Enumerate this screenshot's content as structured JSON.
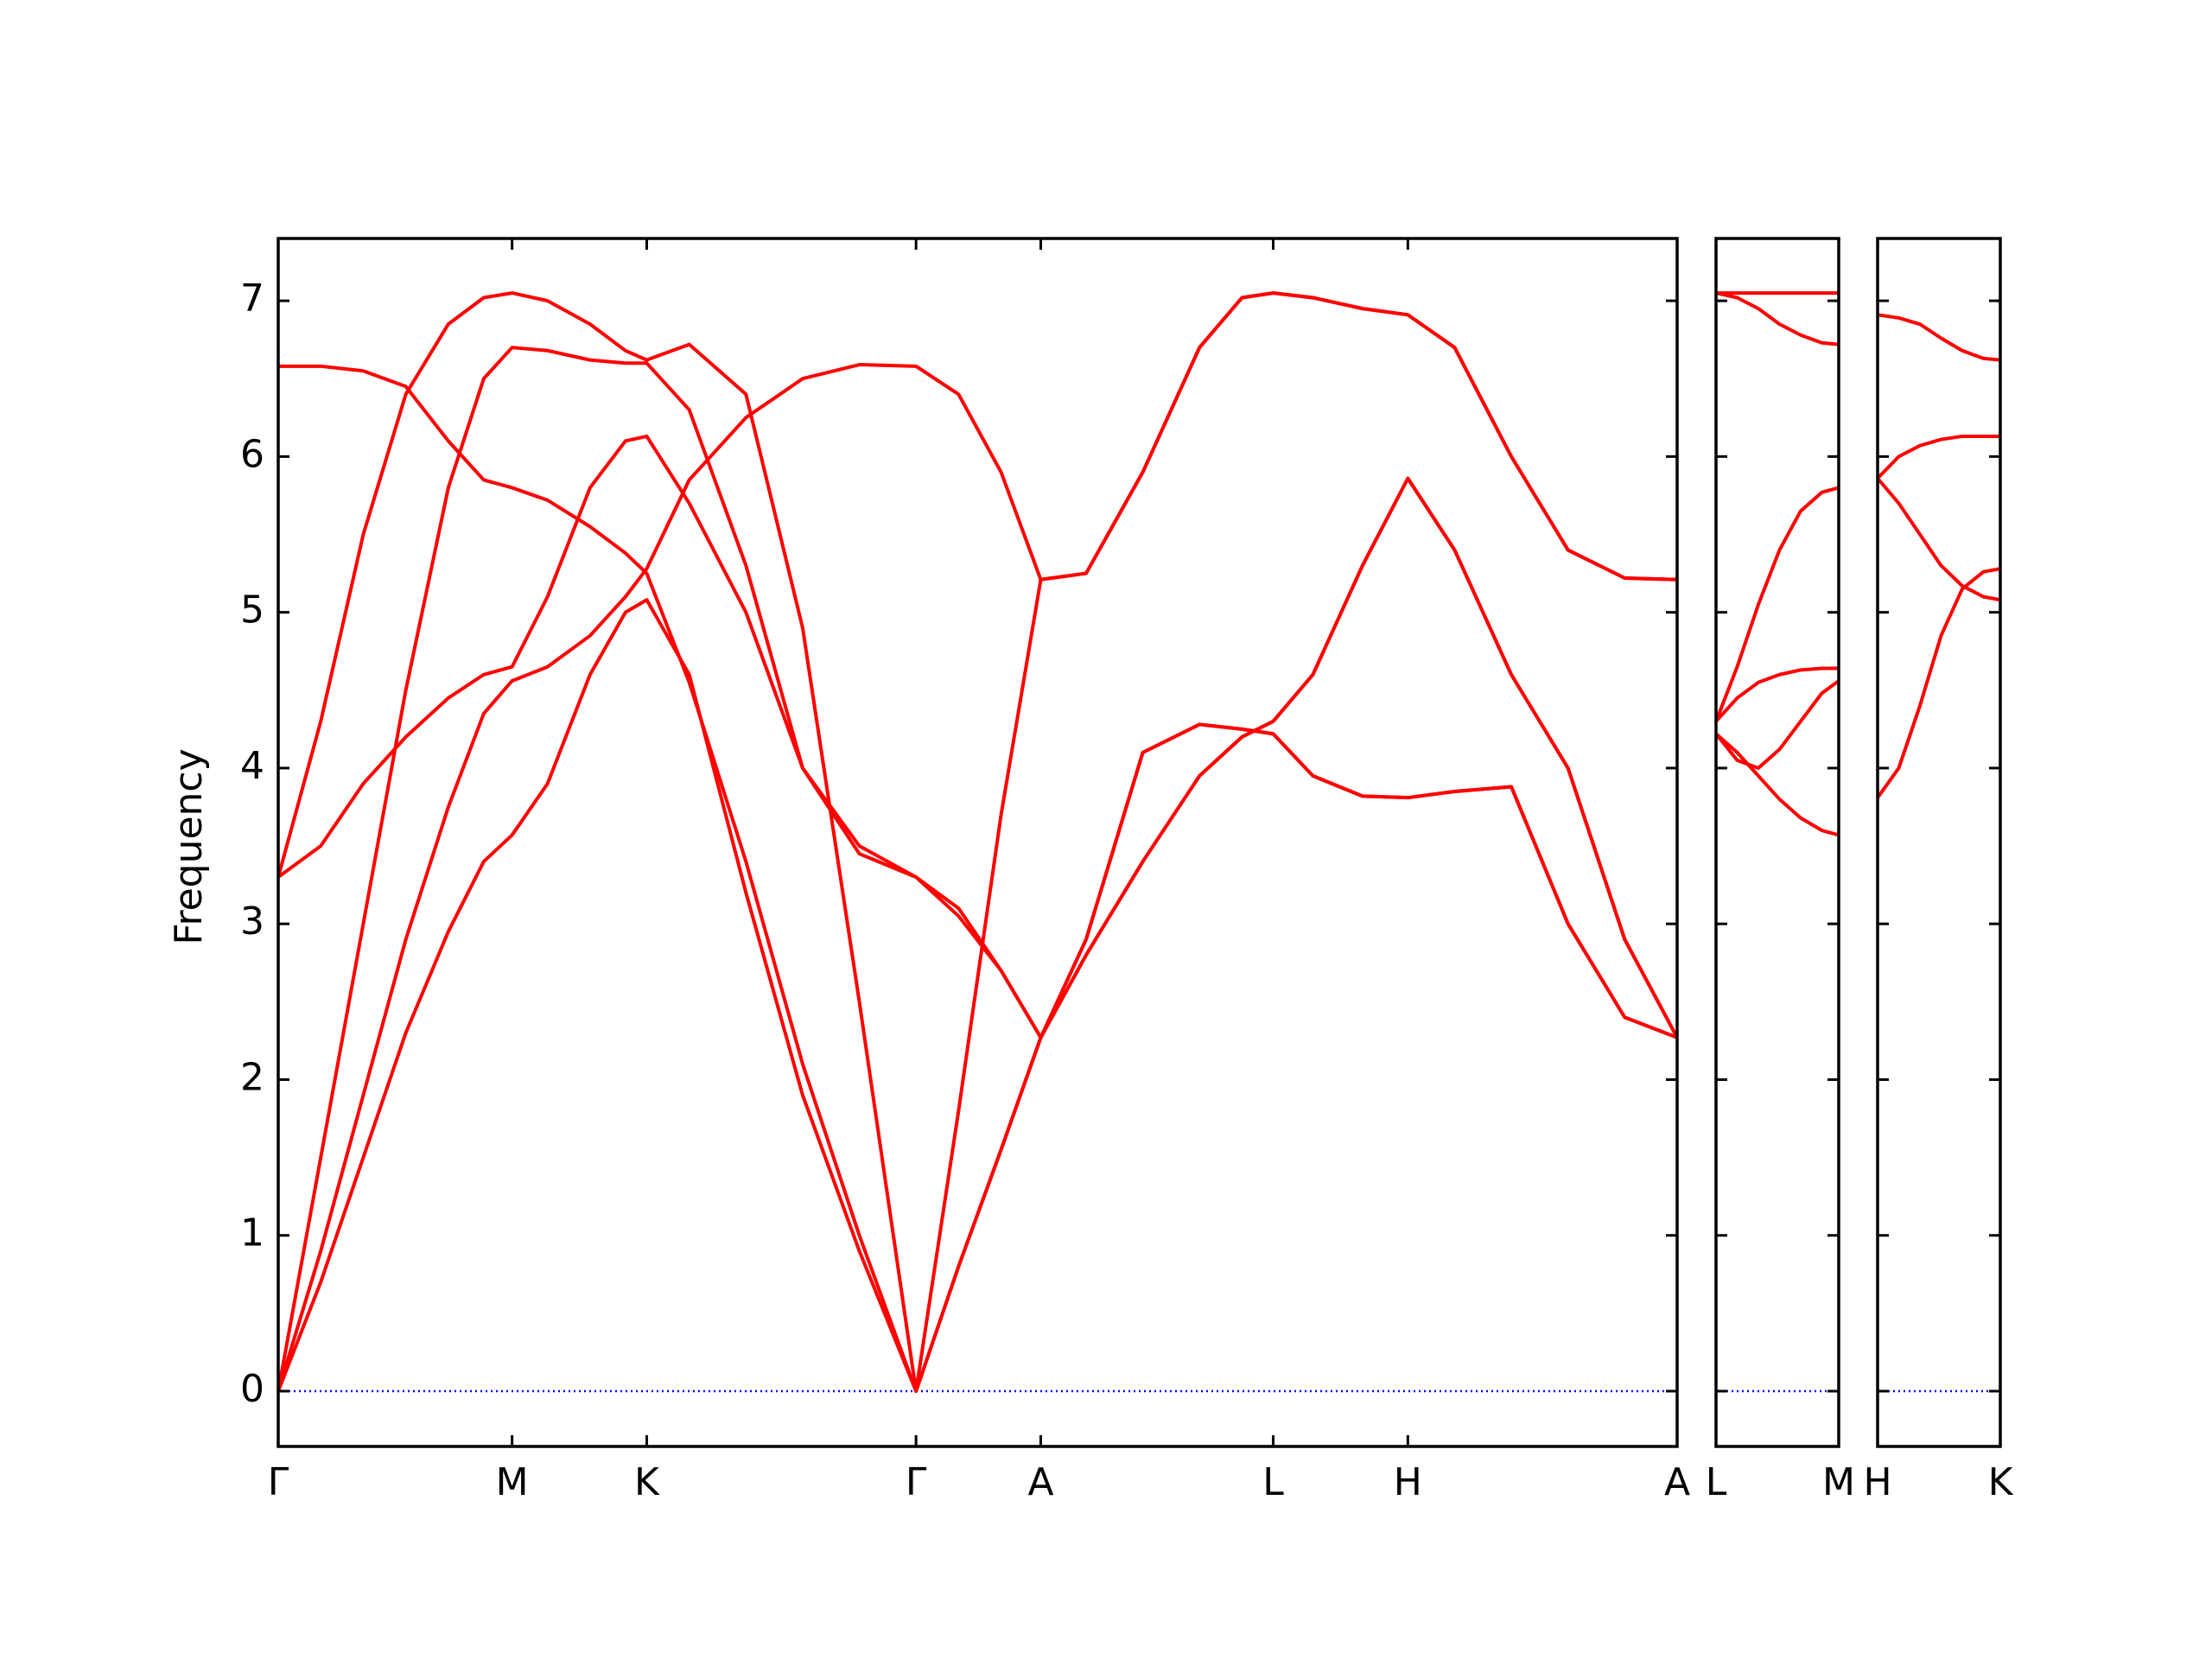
{
  "chart_data": [
    {
      "type": "line",
      "ylabel": "Frequency",
      "ytick_labels": true,
      "color": "#ff0000",
      "xlim": [
        0,
        9.87
      ],
      "ylim": [
        -0.355,
        7.4
      ],
      "xticks": [
        {
          "value": 0,
          "label": "Γ"
        },
        {
          "value": 1.65,
          "label": "M"
        },
        {
          "value": 2.6,
          "label": "K"
        },
        {
          "value": 4.5,
          "label": "Γ"
        },
        {
          "value": 5.38,
          "label": "A"
        },
        {
          "value": 7.02,
          "label": "L"
        },
        {
          "value": 7.97,
          "label": "H"
        },
        {
          "value": 9.87,
          "label": "A"
        }
      ],
      "yticks": [
        0,
        1,
        2,
        3,
        4,
        5,
        6,
        7
      ],
      "hline": {
        "value": 0,
        "color": "#0000ff"
      },
      "x": [
        0,
        0.3,
        0.6,
        0.9,
        1.2,
        1.45,
        1.65,
        1.9,
        2.2,
        2.45,
        2.6,
        2.9,
        3.3,
        3.7,
        4.1,
        4.5,
        4.8,
        5.1,
        5.38,
        5.7,
        6.1,
        6.5,
        6.8,
        7.02,
        7.3,
        7.65,
        7.97,
        8.3,
        8.7,
        9.1,
        9.5,
        9.87
      ],
      "series": [
        {
          "values": [
            0,
            0.7,
            1.5,
            2.3,
            2.95,
            3.4,
            3.57,
            3.9,
            4.6,
            5.0,
            5.08,
            4.6,
            3.2,
            1.9,
            0.9,
            0,
            0.8,
            1.55,
            2.27,
            2.9,
            4.1,
            4.28,
            4.25,
            4.22,
            3.95,
            3.82,
            3.81,
            3.85,
            3.88,
            3.0,
            2.4,
            2.27
          ]
        },
        {
          "values": [
            0,
            0.9,
            1.9,
            2.9,
            3.75,
            4.35,
            4.56,
            4.65,
            4.85,
            5.1,
            5.28,
            5.85,
            6.25,
            6.5,
            6.59,
            6.58,
            6.4,
            5.9,
            5.21,
            5.25,
            5.9,
            6.7,
            7.02,
            7.05,
            7.02,
            6.95,
            6.91,
            6.7,
            6.0,
            5.4,
            5.22,
            5.21
          ]
        },
        {
          "values": [
            0,
            1.5,
            3.0,
            4.5,
            5.8,
            6.5,
            6.7,
            6.68,
            6.62,
            6.6,
            6.6,
            6.3,
            5.3,
            4.0,
            3.45,
            3.3,
            3.05,
            2.7,
            2.27,
            2.8,
            3.4,
            3.95,
            4.2,
            4.3,
            4.6,
            5.3,
            5.86,
            5.4,
            4.6,
            4.0,
            2.9,
            2.27
          ]
        },
        {
          "values": [
            3.3,
            4.3,
            5.5,
            6.4,
            6.85,
            7.02,
            7.05,
            7.0,
            6.85,
            6.68,
            6.62,
            6.72,
            6.4,
            4.9,
            2.5,
            0,
            1.8,
            3.7,
            5.21,
            5.25,
            5.9,
            6.7,
            7.02,
            7.05,
            7.02,
            6.95,
            6.91,
            6.7,
            6.0,
            5.4,
            5.22,
            5.21
          ]
        },
        {
          "values": [
            3.3,
            3.5,
            3.9,
            4.2,
            4.45,
            4.6,
            4.65,
            5.1,
            5.8,
            6.1,
            6.13,
            5.7,
            5.0,
            4.0,
            3.5,
            3.3,
            3.1,
            2.7,
            2.27,
            2.9,
            4.1,
            4.28,
            4.25,
            4.22,
            3.95,
            3.82,
            3.81,
            3.85,
            3.88,
            3.0,
            2.4,
            2.27
          ]
        },
        {
          "values": [
            6.58,
            6.58,
            6.55,
            6.45,
            6.1,
            5.85,
            5.8,
            5.72,
            5.55,
            5.38,
            5.25,
            4.55,
            3.4,
            2.1,
            1.0,
            0,
            0.8,
            1.55,
            2.27,
            2.8,
            3.4,
            3.95,
            4.2,
            4.3,
            4.6,
            5.3,
            5.86,
            5.4,
            4.6,
            4.0,
            2.9,
            2.27
          ]
        }
      ]
    },
    {
      "type": "line",
      "ytick_labels": false,
      "color": "#ff0000",
      "xlim": [
        0,
        0.87
      ],
      "ylim": [
        -0.355,
        7.4
      ],
      "xticks": [
        {
          "value": 0,
          "label": "L"
        },
        {
          "value": 0.87,
          "label": "M"
        }
      ],
      "yticks": [
        0,
        1,
        2,
        3,
        4,
        5,
        6,
        7
      ],
      "hline": {
        "value": 0,
        "color": "#0000ff"
      },
      "x": [
        0,
        0.15,
        0.3,
        0.45,
        0.6,
        0.75,
        0.87
      ],
      "series": [
        {
          "values": [
            7.05,
            7.05,
            7.05,
            7.05,
            7.05,
            7.05,
            7.05
          ]
        },
        {
          "values": [
            7.05,
            7.02,
            6.95,
            6.85,
            6.78,
            6.73,
            6.72
          ]
        },
        {
          "values": [
            4.3,
            4.65,
            5.05,
            5.4,
            5.65,
            5.77,
            5.8
          ]
        },
        {
          "values": [
            4.3,
            4.45,
            4.55,
            4.6,
            4.63,
            4.64,
            4.64
          ]
        },
        {
          "values": [
            4.22,
            4.05,
            4.0,
            4.12,
            4.3,
            4.48,
            4.56
          ]
        },
        {
          "values": [
            4.22,
            4.1,
            3.95,
            3.8,
            3.68,
            3.6,
            3.57
          ]
        }
      ]
    },
    {
      "type": "line",
      "ytick_labels": false,
      "color": "#ff0000",
      "xlim": [
        0,
        0.87
      ],
      "ylim": [
        -0.355,
        7.4
      ],
      "xticks": [
        {
          "value": 0,
          "label": "H"
        },
        {
          "value": 0.87,
          "label": "K"
        }
      ],
      "yticks": [
        0,
        1,
        2,
        3,
        4,
        5,
        6,
        7
      ],
      "hline": {
        "value": 0,
        "color": "#0000ff"
      },
      "x": [
        0,
        0.15,
        0.3,
        0.45,
        0.6,
        0.75,
        0.87
      ],
      "series": [
        {
          "values": [
            6.91,
            6.89,
            6.85,
            6.76,
            6.68,
            6.63,
            6.62
          ]
        },
        {
          "values": [
            5.86,
            6.0,
            6.07,
            6.11,
            6.13,
            6.13,
            6.13
          ]
        },
        {
          "values": [
            5.86,
            5.7,
            5.5,
            5.3,
            5.17,
            5.1,
            5.08
          ]
        },
        {
          "values": [
            3.81,
            4.0,
            4.4,
            4.85,
            5.15,
            5.26,
            5.28
          ]
        }
      ]
    }
  ]
}
